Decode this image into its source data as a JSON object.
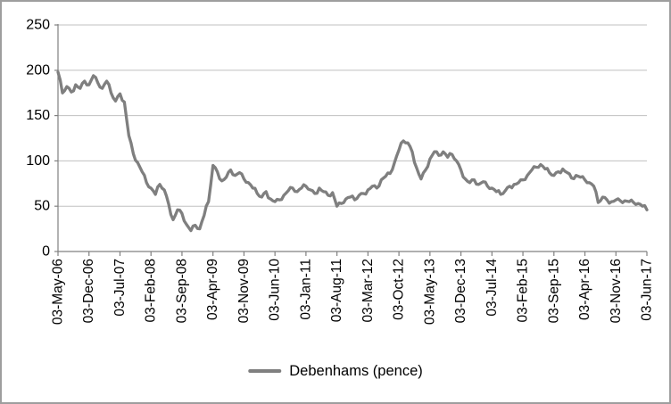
{
  "chart_data": {
    "type": "line",
    "title": "",
    "xlabel": "",
    "ylabel": "",
    "ylim": [
      0,
      250
    ],
    "y_ticks": [
      0,
      50,
      100,
      150,
      200,
      250
    ],
    "grid": true,
    "legend_position": "bottom",
    "x_unit": "months since 03-May-06 (monthly samples read from plot)",
    "x_tick_labels": [
      "03-May-06",
      "03-Dec-06",
      "03-Jul-07",
      "03-Feb-08",
      "03-Sep-08",
      "03-Apr-09",
      "03-Nov-09",
      "03-Jun-10",
      "03-Jan-11",
      "03-Aug-11",
      "03-Mar-12",
      "03-Oct-12",
      "03-May-13",
      "03-Dec-13",
      "03-Jul-14",
      "03-Feb-15",
      "03-Sep-15",
      "03-Apr-16",
      "03-Nov-16",
      "03-Jun-17"
    ],
    "series": [
      {
        "name": "Debenhams (pence)",
        "color": "#7f7f7f",
        "values": [
          198,
          175,
          182,
          176,
          184,
          180,
          188,
          184,
          194,
          186,
          180,
          188,
          175,
          166,
          174,
          165,
          128,
          108,
          98,
          88,
          76,
          70,
          63,
          74,
          68,
          52,
          35,
          46,
          42,
          30,
          23,
          29,
          25,
          40,
          55,
          95,
          88,
          78,
          82,
          90,
          84,
          87,
          80,
          76,
          70,
          64,
          60,
          66,
          58,
          55,
          57,
          62,
          67,
          70,
          66,
          70,
          72,
          68,
          64,
          70,
          66,
          62,
          65,
          50,
          53,
          58,
          60,
          57,
          62,
          64,
          68,
          72,
          70,
          79,
          83,
          86,
          98,
          112,
          122,
          120,
          110,
          92,
          80,
          90,
          102,
          110,
          106,
          110,
          104,
          107,
          100,
          90,
          80,
          76,
          79,
          74,
          77,
          72,
          70,
          66,
          63,
          67,
          72,
          74,
          76,
          79,
          84,
          90,
          93,
          96,
          91,
          87,
          84,
          88,
          91,
          87,
          81,
          84,
          82,
          79,
          76,
          72,
          54,
          60,
          57,
          55,
          57,
          56,
          56,
          55,
          54,
          53,
          50,
          46
        ]
      }
    ],
    "colors": {
      "line": "#7f7f7f",
      "gridline": "#c0c0c0",
      "axis": "#808080",
      "text": "#000000",
      "frame_border": "#9e9e9e"
    }
  }
}
